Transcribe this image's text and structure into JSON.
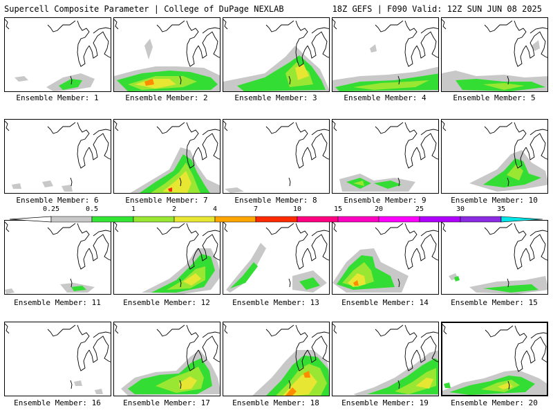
{
  "header": {
    "left_title": "Supercell Composite Parameter | College of DuPage NEXLAB",
    "right_title": "18Z GEFS | F090 Valid: 12Z SUN JUN 08 2025"
  },
  "colorbar": {
    "ticks": [
      "0.25",
      "0.5",
      "1",
      "2",
      "4",
      "7",
      "10",
      "15",
      "20",
      "25",
      "30",
      "35"
    ],
    "colors": [
      "#c8c8c8",
      "#33e633",
      "#99e633",
      "#e6e633",
      "#ffa500",
      "#ff2a00",
      "#ff0080",
      "#ff00c0",
      "#ff00ff",
      "#b000ff",
      "#8a2be2",
      "#00e5e5"
    ]
  },
  "members": [
    {
      "label": "Ensemble Member: 1"
    },
    {
      "label": "Ensemble Member: 2"
    },
    {
      "label": "Ensemble Member: 3"
    },
    {
      "label": "Ensemble Member: 4"
    },
    {
      "label": "Ensemble Member: 5"
    },
    {
      "label": "Ensemble Member: 6"
    },
    {
      "label": "Ensemble Member: 7"
    },
    {
      "label": "Ensemble Member: 8"
    },
    {
      "label": "Ensemble Member: 9"
    },
    {
      "label": "Ensemble Member: 10"
    },
    {
      "label": "Ensemble Member: 11"
    },
    {
      "label": "Ensemble Member: 12"
    },
    {
      "label": "Ensemble Member: 13"
    },
    {
      "label": "Ensemble Member: 14"
    },
    {
      "label": "Ensemble Member: 15"
    },
    {
      "label": "Ensemble Member: 16"
    },
    {
      "label": "Ensemble Member: 17"
    },
    {
      "label": "Ensemble Member: 18"
    },
    {
      "label": "Ensemble Member: 19"
    },
    {
      "label": "Ensemble Member: 20"
    }
  ]
}
